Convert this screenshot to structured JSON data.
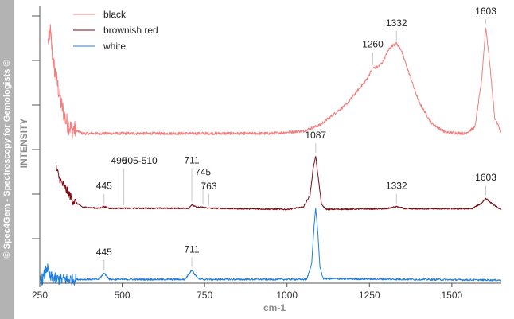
{
  "watermark": "© Spec4Gem - Spectroscopy for Gemologists ©",
  "chart_data": {
    "type": "line",
    "xlabel": "cm-1",
    "ylabel": "INTENSITY",
    "xlim": [
      250,
      1650
    ],
    "x_ticks": [
      250,
      500,
      750,
      1000,
      1250,
      1500
    ],
    "grid": false,
    "legend_position": "top-left",
    "series": [
      {
        "name": "black",
        "color": "#f08080",
        "profile": [
          [
            275,
            0.88
          ],
          [
            282,
            0.96
          ],
          [
            290,
            0.72
          ],
          [
            300,
            0.58
          ],
          [
            315,
            0.36
          ],
          [
            330,
            0.22
          ],
          [
            345,
            0.16
          ],
          [
            380,
            0.12
          ],
          [
            500,
            0.12
          ],
          [
            700,
            0.12
          ],
          [
            950,
            0.12
          ],
          [
            1050,
            0.14
          ],
          [
            1100,
            0.19
          ],
          [
            1180,
            0.36
          ],
          [
            1240,
            0.56
          ],
          [
            1260,
            0.66
          ],
          [
            1275,
            0.67
          ],
          [
            1290,
            0.71
          ],
          [
            1310,
            0.82
          ],
          [
            1330,
            0.87
          ],
          [
            1345,
            0.82
          ],
          [
            1370,
            0.62
          ],
          [
            1400,
            0.38
          ],
          [
            1440,
            0.2
          ],
          [
            1480,
            0.13
          ],
          [
            1540,
            0.12
          ],
          [
            1570,
            0.17
          ],
          [
            1590,
            0.55
          ],
          [
            1603,
            1.0
          ],
          [
            1615,
            0.7
          ],
          [
            1630,
            0.25
          ],
          [
            1650,
            0.13
          ]
        ],
        "peaks": [
          {
            "x": 1260,
            "label": "1260"
          },
          {
            "x": 1332,
            "label": "1332"
          },
          {
            "x": 1603,
            "label": "1603"
          }
        ]
      },
      {
        "name": "brownish red",
        "color": "#7a0a14",
        "profile": [
          [
            300,
            0.78
          ],
          [
            308,
            0.62
          ],
          [
            316,
            0.52
          ],
          [
            330,
            0.4
          ],
          [
            350,
            0.2
          ],
          [
            380,
            0.08
          ],
          [
            430,
            0.06
          ],
          [
            445,
            0.09
          ],
          [
            460,
            0.06
          ],
          [
            500,
            0.06
          ],
          [
            700,
            0.06
          ],
          [
            711,
            0.12
          ],
          [
            725,
            0.08
          ],
          [
            745,
            0.08
          ],
          [
            763,
            0.06
          ],
          [
            1000,
            0.04
          ],
          [
            1050,
            0.08
          ],
          [
            1070,
            0.3
          ],
          [
            1080,
            0.8
          ],
          [
            1087,
            1.0
          ],
          [
            1095,
            0.6
          ],
          [
            1105,
            0.12
          ],
          [
            1120,
            0.04
          ],
          [
            1300,
            0.05
          ],
          [
            1332,
            0.09
          ],
          [
            1360,
            0.05
          ],
          [
            1560,
            0.05
          ],
          [
            1590,
            0.15
          ],
          [
            1603,
            0.24
          ],
          [
            1618,
            0.16
          ],
          [
            1650,
            0.03
          ]
        ],
        "peaks": [
          {
            "x": 445,
            "label": "445"
          },
          {
            "x": 490,
            "label": "490"
          },
          {
            "x": 505,
            "label": "505-510"
          },
          {
            "x": 711,
            "label": "711"
          },
          {
            "x": 745,
            "label": "745"
          },
          {
            "x": 763,
            "label": "763"
          },
          {
            "x": 1087,
            "label": "1087"
          },
          {
            "x": 1332,
            "label": "1332"
          },
          {
            "x": 1603,
            "label": "1603"
          }
        ]
      },
      {
        "name": "white",
        "color": "#1f7fe0",
        "profile": [
          [
            250,
            0.02
          ],
          [
            260,
            0.04
          ],
          [
            272,
            0.2
          ],
          [
            280,
            0.06
          ],
          [
            295,
            0.05
          ],
          [
            300,
            0.03
          ],
          [
            430,
            0.03
          ],
          [
            438,
            0.08
          ],
          [
            445,
            0.12
          ],
          [
            452,
            0.08
          ],
          [
            462,
            0.03
          ],
          [
            690,
            0.03
          ],
          [
            702,
            0.1
          ],
          [
            711,
            0.16
          ],
          [
            720,
            0.1
          ],
          [
            735,
            0.03
          ],
          [
            1060,
            0.03
          ],
          [
            1075,
            0.25
          ],
          [
            1082,
            0.75
          ],
          [
            1087,
            1.0
          ],
          [
            1093,
            0.7
          ],
          [
            1100,
            0.2
          ],
          [
            1110,
            0.04
          ],
          [
            1650,
            0.02
          ]
        ],
        "peaks": [
          {
            "x": 445,
            "label": "445"
          },
          {
            "x": 711,
            "label": "711"
          }
        ]
      }
    ]
  }
}
